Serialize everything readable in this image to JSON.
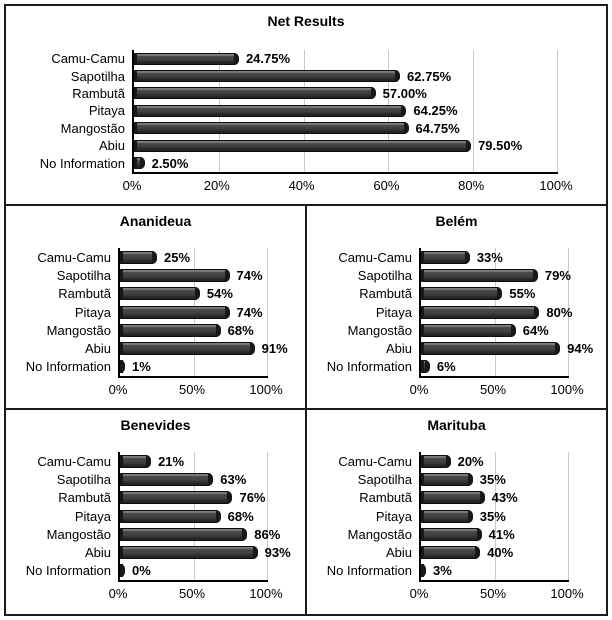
{
  "colors": {
    "bar": "#454545",
    "bar_cap": "#181818",
    "gridline": "#c9c9c9",
    "axis": "#000000",
    "border": "#1a1a1a"
  },
  "chart_data": [
    {
      "type": "bar",
      "orientation": "horizontal",
      "title": "Net Results",
      "categories": [
        "Camu-Camu",
        "Sapotilha",
        "Rambutã",
        "Pitaya",
        "Mangostão",
        "Abiu",
        "No Information"
      ],
      "values": [
        24.75,
        62.75,
        57.0,
        64.25,
        64.75,
        79.5,
        2.5
      ],
      "value_labels": [
        "24.75%",
        "62.75%",
        "57.00%",
        "64.25%",
        "64.75%",
        "79.50%",
        "2.50%"
      ],
      "x_tick_labels": [
        "0%",
        "20%",
        "40%",
        "60%",
        "80%",
        "100%"
      ],
      "x_tick_values": [
        0,
        20,
        40,
        60,
        80,
        100
      ],
      "xlim": [
        0,
        100
      ],
      "grid": "vertical",
      "legend": "none"
    },
    {
      "type": "bar",
      "orientation": "horizontal",
      "title": "Ananideua",
      "categories": [
        "Camu-Camu",
        "Sapotilha",
        "Rambutã",
        "Pitaya",
        "Mangostão",
        "Abiu",
        "No Information"
      ],
      "values": [
        25,
        74,
        54,
        74,
        68,
        91,
        1
      ],
      "value_labels": [
        "25%",
        "74%",
        "54%",
        "74%",
        "68%",
        "91%",
        "1%"
      ],
      "x_tick_labels": [
        "0%",
        "50%",
        "100%"
      ],
      "x_tick_values": [
        0,
        50,
        100
      ],
      "xlim": [
        0,
        100
      ],
      "grid": "vertical",
      "legend": "none"
    },
    {
      "type": "bar",
      "orientation": "horizontal",
      "title": "Belém",
      "categories": [
        "Camu-Camu",
        "Sapotilha",
        "Rambutã",
        "Pitaya",
        "Mangostão",
        "Abiu",
        "No Information"
      ],
      "values": [
        33,
        79,
        55,
        80,
        64,
        94,
        6
      ],
      "value_labels": [
        "33%",
        "79%",
        "55%",
        "80%",
        "64%",
        "94%",
        "6%"
      ],
      "x_tick_labels": [
        "0%",
        "50%",
        "100%"
      ],
      "x_tick_values": [
        0,
        50,
        100
      ],
      "xlim": [
        0,
        100
      ],
      "grid": "vertical",
      "legend": "none"
    },
    {
      "type": "bar",
      "orientation": "horizontal",
      "title": "Benevides",
      "categories": [
        "Camu-Camu",
        "Sapotilha",
        "Rambutã",
        "Pitaya",
        "Mangostão",
        "Abiu",
        "No Information"
      ],
      "values": [
        21,
        63,
        76,
        68,
        86,
        93,
        0
      ],
      "value_labels": [
        "21%",
        "63%",
        "76%",
        "68%",
        "86%",
        "93%",
        "0%"
      ],
      "x_tick_labels": [
        "0%",
        "50%",
        "100%"
      ],
      "x_tick_values": [
        0,
        50,
        100
      ],
      "xlim": [
        0,
        100
      ],
      "grid": "vertical",
      "legend": "none"
    },
    {
      "type": "bar",
      "orientation": "horizontal",
      "title": "Marituba",
      "categories": [
        "Camu-Camu",
        "Sapotilha",
        "Rambutã",
        "Pitaya",
        "Mangostão",
        "Abiu",
        "No Information"
      ],
      "values": [
        20,
        35,
        43,
        35,
        41,
        40,
        3
      ],
      "value_labels": [
        "20%",
        "35%",
        "43%",
        "35%",
        "41%",
        "40%",
        "3%"
      ],
      "x_tick_labels": [
        "0%",
        "50%",
        "100%"
      ],
      "x_tick_values": [
        0,
        50,
        100
      ],
      "xlim": [
        0,
        100
      ],
      "grid": "vertical",
      "legend": "none"
    }
  ]
}
